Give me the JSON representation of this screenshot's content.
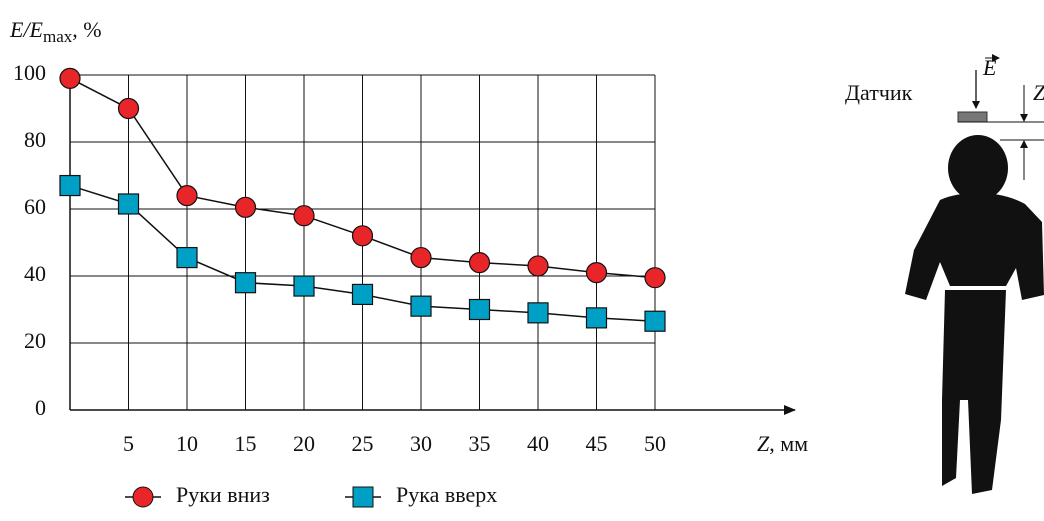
{
  "chart_data": {
    "type": "line",
    "y_label": [
      "E/E",
      "max",
      ", %"
    ],
    "x_label": [
      "Z",
      ", мм"
    ],
    "x": [
      0,
      5,
      10,
      15,
      20,
      25,
      30,
      35,
      40,
      45,
      50
    ],
    "series": [
      {
        "name": "Руки вниз",
        "color": "#e8262a",
        "marker": "circle",
        "values": [
          99,
          90,
          64,
          60.5,
          58,
          52,
          45.5,
          44,
          43,
          41,
          39.5
        ]
      },
      {
        "name": "Рука вверх",
        "color": "#00a0c6",
        "marker": "square",
        "values": [
          67,
          61.5,
          45.5,
          38,
          37,
          34.5,
          31,
          30,
          29,
          27.5,
          26.5
        ]
      }
    ],
    "xlim": [
      0,
      50
    ],
    "xticks": [
      5,
      10,
      15,
      20,
      25,
      30,
      35,
      40,
      45,
      50
    ],
    "ylim": [
      0,
      100
    ],
    "yticks": [
      0,
      20,
      40,
      60,
      80,
      100
    ],
    "grid": true,
    "legend": "bottom"
  },
  "figure": {
    "sensor_label": "Датчик",
    "field_label": "E",
    "distance_label": "Z"
  }
}
